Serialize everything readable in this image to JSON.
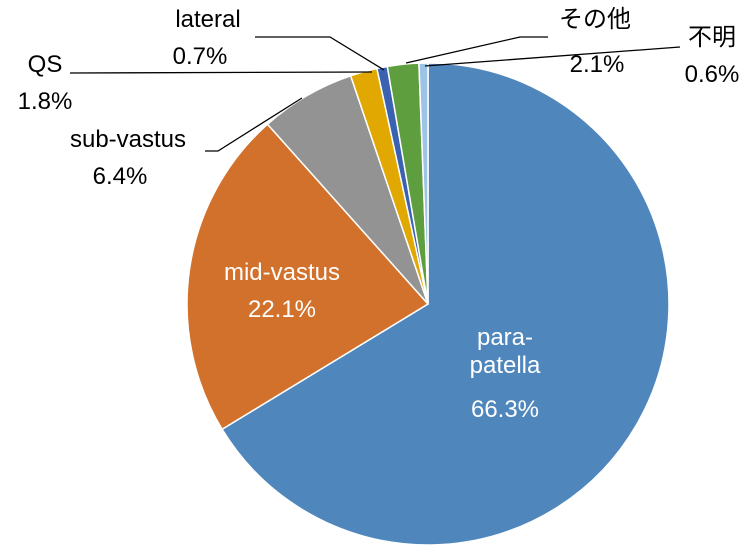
{
  "chart_data": {
    "type": "pie",
    "categories": [
      "para-patella",
      "mid-vastus",
      "sub-vastus",
      "QS",
      "lateral",
      "その他",
      "不明"
    ],
    "values": [
      66.3,
      22.1,
      6.4,
      1.8,
      0.7,
      2.1,
      0.6
    ],
    "value_labels": [
      "66.3%",
      "22.1%",
      "6.4%",
      "1.8%",
      "0.7%",
      "2.1%",
      "0.6%"
    ],
    "colors": [
      "#4f87bd",
      "#d2712b",
      "#939393",
      "#e0a800",
      "#3a62b0",
      "#5e9e3e",
      "#9dc3e6"
    ]
  }
}
